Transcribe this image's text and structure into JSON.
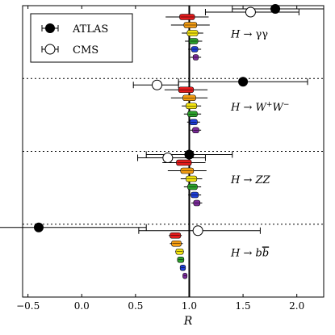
{
  "chart_data": {
    "type": "scatter",
    "title": "",
    "xlabel": "R",
    "ylabel": "",
    "xlim": [
      -0.55,
      2.25
    ],
    "xticks": [
      -0.5,
      0.0,
      0.5,
      1.0,
      1.5,
      2.0
    ],
    "xtick_labels": [
      "−0.5",
      "0.0",
      "0.5",
      "1.0",
      "1.5",
      "2.0"
    ],
    "reference_line": 1.0,
    "grid": false,
    "legend_position": "top-left",
    "legend": [
      {
        "name": "ATLAS",
        "marker": "filled-circle"
      },
      {
        "name": "CMS",
        "marker": "open-circle"
      }
    ],
    "fan_colors": [
      "#e31a1c",
      "#f39c12",
      "#f2e30f",
      "#2ca02c",
      "#1f3fd6",
      "#7b2a9a"
    ],
    "panels": [
      {
        "label_parts": [
          {
            "t": "H",
            "i": true
          },
          {
            "t": " → γγ",
            "i": false
          }
        ],
        "atlas": {
          "x": 1.8,
          "xerr": [
            0.4,
            0.45
          ]
        },
        "cms": {
          "x": 1.57,
          "xerr": [
            0.42,
            0.45
          ]
        },
        "fan": [
          {
            "x": 0.98,
            "err": 0.2,
            "w": 0.07
          },
          {
            "x": 1.01,
            "err": 0.18,
            "w": 0.06
          },
          {
            "x": 1.03,
            "err": 0.1,
            "w": 0.05
          },
          {
            "x": 1.04,
            "err": 0.08,
            "w": 0.04
          },
          {
            "x": 1.05,
            "err": 0.06,
            "w": 0.03
          },
          {
            "x": 1.06,
            "err": 0.05,
            "w": 0.025
          }
        ]
      },
      {
        "label_parts": [
          {
            "t": "H",
            "i": true
          },
          {
            "t": " → ",
            "i": false
          },
          {
            "t": "W",
            "i": true
          },
          {
            "t": "+",
            "sup": true
          },
          {
            "t": "W",
            "i": true
          },
          {
            "t": "−",
            "sup": true
          }
        ],
        "atlas": {
          "x": 1.5,
          "xerr": [
            0.6,
            0.6
          ]
        },
        "cms": {
          "x": 0.7,
          "xerr": [
            0.22,
            0.2
          ]
        },
        "fan": [
          {
            "x": 0.97,
            "err": 0.2,
            "w": 0.07
          },
          {
            "x": 1.0,
            "err": 0.17,
            "w": 0.06
          },
          {
            "x": 1.02,
            "err": 0.09,
            "w": 0.05
          },
          {
            "x": 1.03,
            "err": 0.08,
            "w": 0.045
          },
          {
            "x": 1.04,
            "err": 0.06,
            "w": 0.035
          },
          {
            "x": 1.06,
            "err": 0.05,
            "w": 0.03
          }
        ]
      },
      {
        "label_parts": [
          {
            "t": "H",
            "i": true
          },
          {
            "t": " → ",
            "i": false
          },
          {
            "t": "ZZ",
            "i": true
          }
        ],
        "atlas": {
          "x": 1.0,
          "xerr": [
            0.4,
            0.4
          ]
        },
        "cms": {
          "x": 0.8,
          "xerr": [
            0.28,
            0.35
          ]
        },
        "fan": [
          {
            "x": 0.95,
            "err": 0.2,
            "w": 0.07
          },
          {
            "x": 0.98,
            "err": 0.18,
            "w": 0.06
          },
          {
            "x": 1.02,
            "err": 0.1,
            "w": 0.05
          },
          {
            "x": 1.03,
            "err": 0.08,
            "w": 0.045
          },
          {
            "x": 1.05,
            "err": 0.06,
            "w": 0.035
          },
          {
            "x": 1.07,
            "err": 0.05,
            "w": 0.03
          }
        ]
      },
      {
        "label_parts": [
          {
            "t": "H",
            "i": true
          },
          {
            "t": " → ",
            "i": false
          },
          {
            "t": "b",
            "i": true
          },
          {
            "t": "b",
            "i": true,
            "bar": true
          }
        ],
        "atlas": {
          "x": -0.4,
          "xerr": [
            1.0,
            1.0
          ]
        },
        "cms": {
          "x": 1.08,
          "xerr": [
            0.55,
            0.58
          ]
        },
        "fan": [
          {
            "x": 0.87,
            "err": 0.06,
            "w": 0.05
          },
          {
            "x": 0.88,
            "err": 0.06,
            "w": 0.045
          },
          {
            "x": 0.91,
            "err": 0.04,
            "w": 0.035
          },
          {
            "x": 0.92,
            "err": 0.03,
            "w": 0.03
          },
          {
            "x": 0.94,
            "err": 0.025,
            "w": 0.025
          },
          {
            "x": 0.96,
            "err": 0.02,
            "w": 0.02
          }
        ]
      }
    ]
  }
}
